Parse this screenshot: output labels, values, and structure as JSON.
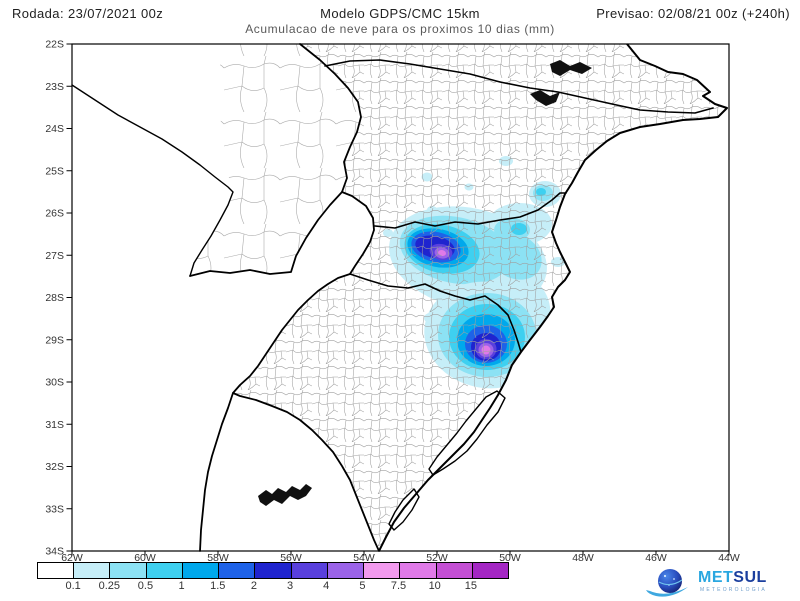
{
  "header": {
    "run_label": "Rodada: 23/07/2021 00z",
    "model_label": "Modelo GDPS/CMC 15km",
    "forecast_label": "Previsao: 02/08/21 00z (+240h)",
    "subtitle": "Acumulacao de neve para os proximos 10 dias (mm)"
  },
  "axes": {
    "lat_labels": [
      "22S",
      "23S",
      "24S",
      "25S",
      "26S",
      "27S",
      "28S",
      "29S",
      "30S",
      "31S",
      "32S",
      "33S",
      "34S"
    ],
    "lon_labels": [
      "62W",
      "60W",
      "58W",
      "56W",
      "54W",
      "52W",
      "50W",
      "48W",
      "46W",
      "44W"
    ]
  },
  "legend": {
    "unit": "mm",
    "thresholds": [
      "0.1",
      "0.25",
      "0.5",
      "1",
      "1.5",
      "2",
      "3",
      "4",
      "5",
      "7.5",
      "10",
      "15"
    ],
    "colors": [
      "#ffffff",
      "#c6eef8",
      "#8ce2f4",
      "#3ed0f0",
      "#00a8ec",
      "#1e62e8",
      "#1f24cf",
      "#5940dd",
      "#9b63e8",
      "#f29aee",
      "#e07ae8",
      "#c44fd4",
      "#a426c4"
    ]
  },
  "logo": {
    "name_part1": "MET",
    "name_part2": "SUL",
    "tagline": "METEOROLOGIA"
  },
  "map_data": {
    "type": "filled-contour weather map",
    "variable": "snow accumulation, next 10 days (mm)",
    "model": "GDPS/CMC 15km",
    "run": "23/07/2021 00z",
    "valid": "02/08/21 00z (+240h)",
    "lat_range": [
      "22S",
      "34S"
    ],
    "lon_range": [
      "62W",
      "44W"
    ],
    "contour_bands_mm": [
      0.1,
      0.25,
      0.5,
      1,
      1.5,
      2,
      3,
      4,
      5,
      7.5,
      10,
      15
    ],
    "snow_regions": [
      {
        "area": "Santa Catarina highlands near 27.5S / 50.5W",
        "peak_band_mm": "5-10"
      },
      {
        "area": "Northeast Rio Grande do Sul near 29.3S / 50.7W",
        "peak_band_mm": "7.5-15"
      },
      {
        "area": "Scattered light accumulation (0.1-1 mm) over eastern Parana and along SC/RS border",
        "peak_band_mm": "0.1-1"
      }
    ]
  }
}
